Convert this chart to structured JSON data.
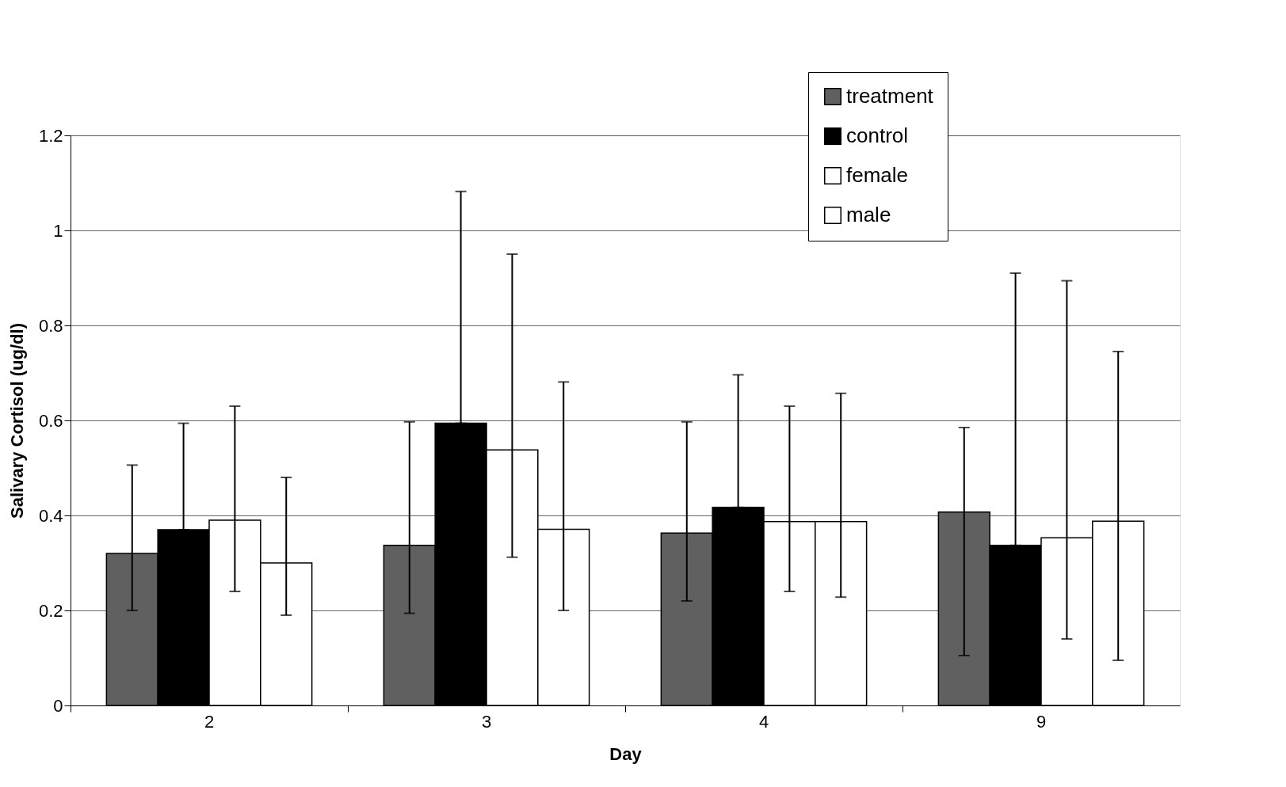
{
  "chart_data": {
    "type": "bar",
    "xlabel": "Day",
    "ylabel": "Salivary Cortisol (ug/dl)",
    "categories": [
      "2",
      "3",
      "4",
      "9"
    ],
    "series": [
      {
        "name": "treatment",
        "color": "#606060",
        "values": [
          0.32,
          0.337,
          0.363,
          0.407
        ],
        "errors": [
          [
            0.2,
            0.506
          ],
          [
            0.194,
            0.597
          ],
          [
            0.22,
            0.597
          ],
          [
            0.105,
            0.585
          ]
        ]
      },
      {
        "name": "control",
        "color": "#000000",
        "values": [
          0.37,
          0.594,
          0.417,
          0.337
        ],
        "errors": [
          [
            0.37,
            0.594
          ],
          [
            0.594,
            1.082
          ],
          [
            0.417,
            0.696
          ],
          [
            0.337,
            0.91
          ]
        ]
      },
      {
        "name": "female",
        "color": "#ffffff",
        "values": [
          0.39,
          0.538,
          0.387,
          0.353
        ],
        "errors": [
          [
            0.24,
            0.63
          ],
          [
            0.312,
            0.95
          ],
          [
            0.24,
            0.63
          ],
          [
            0.14,
            0.894
          ]
        ]
      },
      {
        "name": "male",
        "color": "#ffffff",
        "values": [
          0.3,
          0.371,
          0.387,
          0.388
        ],
        "errors": [
          [
            0.19,
            0.48
          ],
          [
            0.2,
            0.681
          ],
          [
            0.228,
            0.657
          ],
          [
            0.095,
            0.745
          ]
        ]
      }
    ],
    "ylim": [
      0,
      1.2
    ],
    "yticks": [
      0,
      0.2,
      0.4,
      0.6,
      0.8,
      1,
      1.2
    ],
    "grid": "y",
    "legend": "top right"
  }
}
